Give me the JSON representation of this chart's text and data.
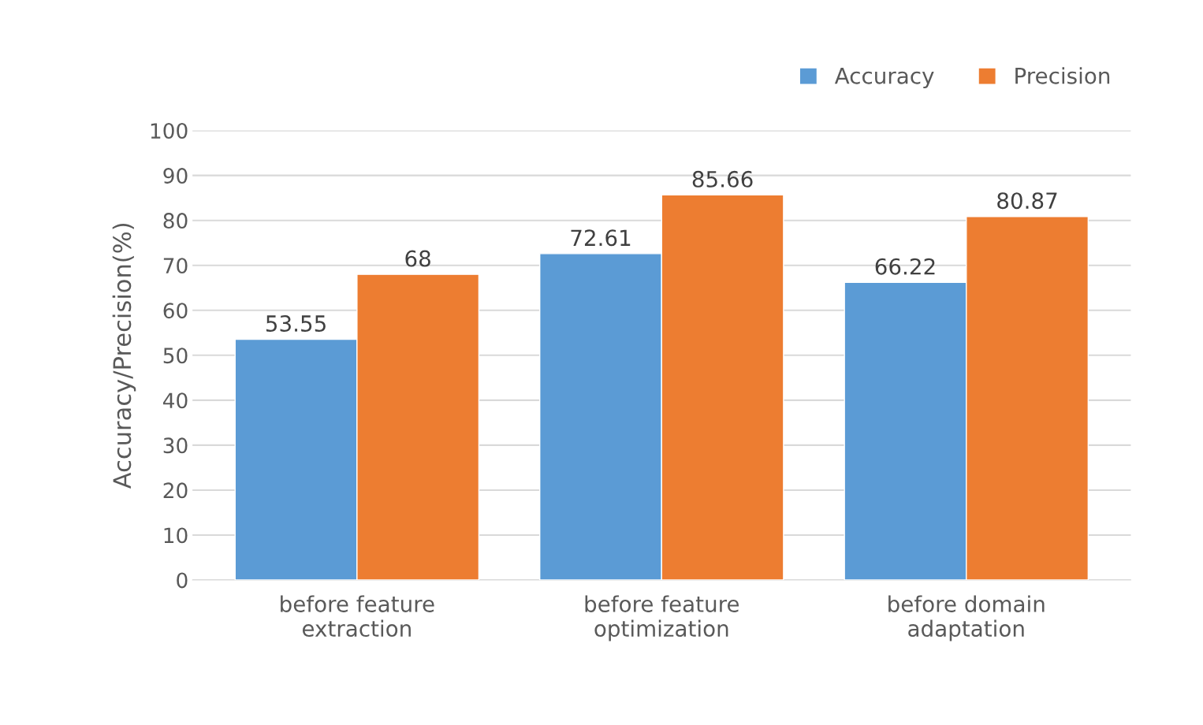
{
  "chart_data": {
    "type": "bar",
    "ylabel": "Accuracy/Precision(%)",
    "categories": [
      "before feature\nextraction",
      "before feature\noptimization",
      "before domain\nadaptation"
    ],
    "series": [
      {
        "name": "Accuracy",
        "color": "#5b9bd5",
        "values": [
          53.55,
          72.61,
          66.22
        ]
      },
      {
        "name": "Precision",
        "color": "#ed7d31",
        "values": [
          68,
          85.66,
          80.87
        ]
      }
    ],
    "ylim": [
      0,
      100
    ],
    "yticks": [
      0,
      10,
      20,
      30,
      40,
      50,
      60,
      70,
      80,
      90,
      100
    ],
    "grid": "y",
    "legend": "top right",
    "data_labels": true
  }
}
